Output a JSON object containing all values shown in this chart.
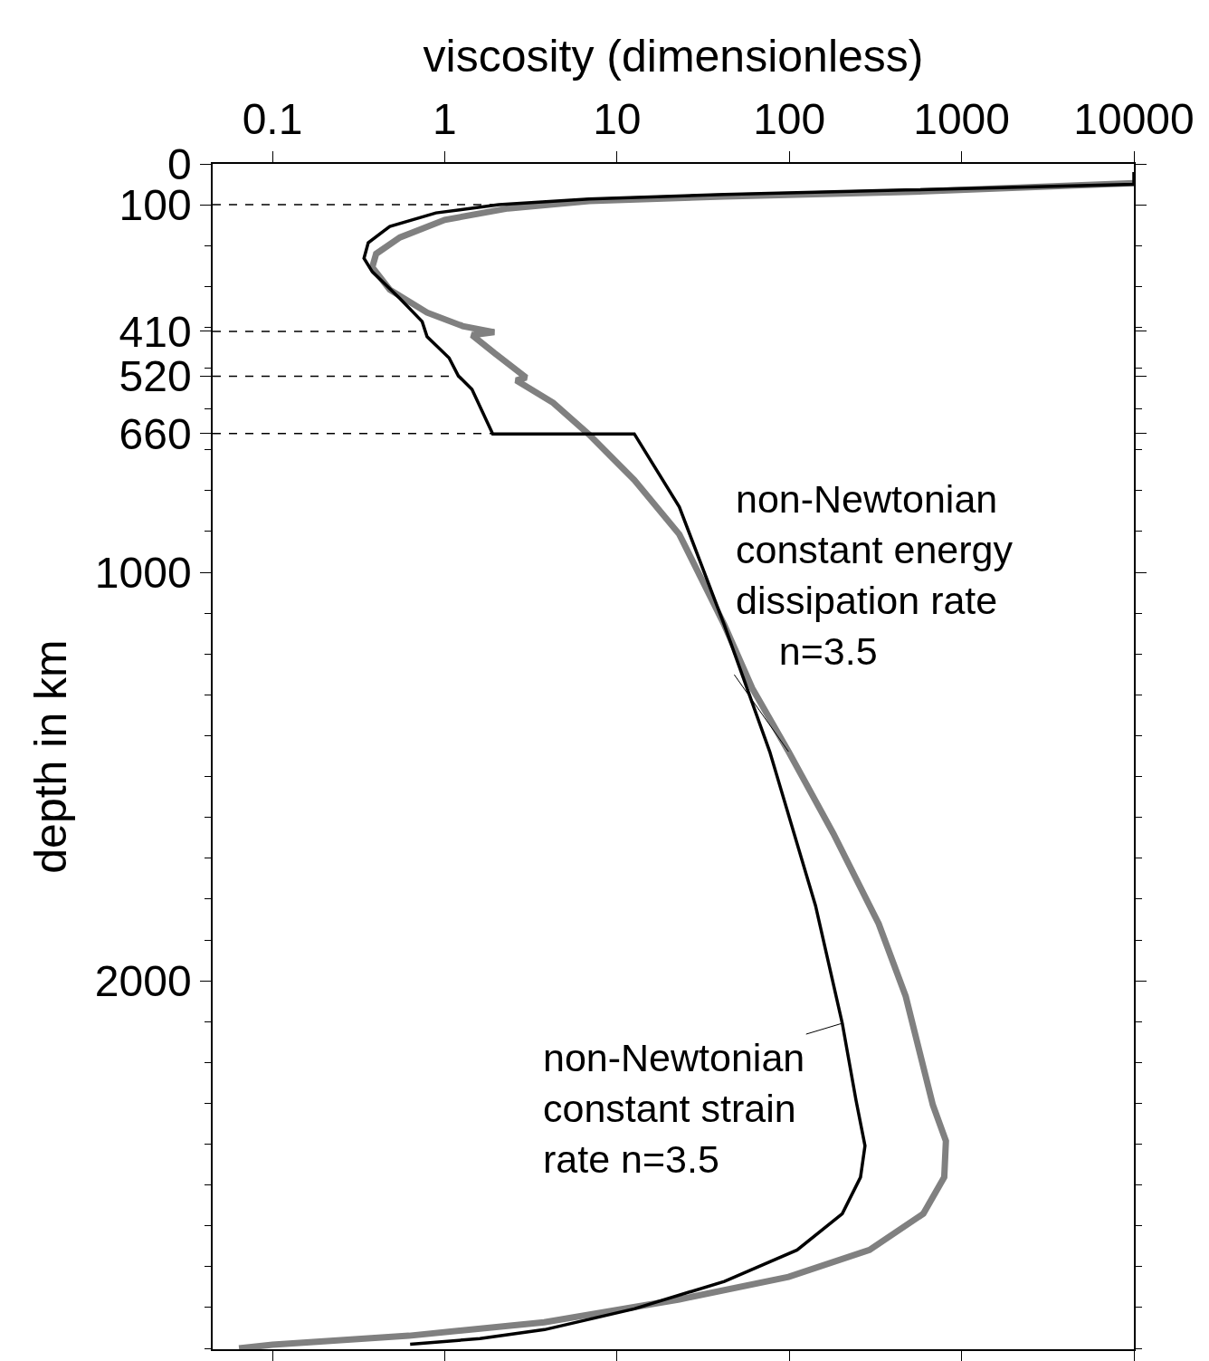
{
  "chart_data": {
    "type": "line",
    "xlabel": "viscosity (dimensionless)",
    "ylabel": "depth in km",
    "log": "x",
    "marker": "none",
    "xlim": [
      0.045,
      10000
    ],
    "xticks": [
      0.1,
      1,
      10,
      100,
      1000,
      10000
    ],
    "ylim": [
      2902,
      0
    ],
    "yticks": [
      0,
      100,
      410,
      520,
      660,
      1000,
      2000
    ],
    "series": [
      {
        "color": "#808080",
        "x": [
          10000,
          474,
          42,
          6.9,
          2.33,
          1.0,
          0.55,
          0.4,
          0.38,
          0.48,
          0.79,
          1.27,
          1.94,
          1.44,
          1.94,
          2.97,
          2.6,
          4.26,
          6.9,
          12.6,
          23,
          42,
          61,
          99,
          180,
          330,
          474,
          681,
          811,
          793,
          600,
          292,
          99,
          23,
          3.78,
          0.62,
          0.1,
          0.064
        ],
        "values": [
          47,
          69,
          80,
          91,
          109,
          137,
          180,
          220,
          253,
          308,
          364,
          397,
          412,
          419,
          463,
          523,
          530,
          585,
          663,
          774,
          907,
          1129,
          1284,
          1439,
          1639,
          1860,
          2038,
          2304,
          2392,
          2481,
          2570,
          2659,
          2725,
          2780,
          2836,
          2869,
          2891,
          2900
        ]
      },
      {
        "color": "#000000",
        "x": [
          10000,
          10000,
          474,
          42,
          6.9,
          2.06,
          0.89,
          0.48,
          0.36,
          0.34,
          0.38,
          0.55,
          0.74,
          0.79,
          1.06,
          1.2,
          1.44,
          1.9,
          12.6,
          23,
          42,
          77,
          142,
          203,
          244,
          275,
          259,
          203,
          111,
          42,
          12.6,
          3.8,
          1.6,
          0.63
        ],
        "values": [
          20,
          50,
          64,
          75,
          86,
          100,
          120,
          153,
          193,
          231,
          264,
          330,
          386,
          423,
          475,
          519,
          552,
          661,
          661,
          840,
          1129,
          1439,
          1816,
          2104,
          2293,
          2404,
          2481,
          2570,
          2659,
          2736,
          2803,
          2854,
          2876,
          2890
        ]
      }
    ],
    "ref_lines": [
      {
        "axis": "y",
        "value": 100,
        "line_style": "dashed",
        "color": "#000000"
      },
      {
        "axis": "y",
        "value": 410,
        "line_style": "dashed",
        "color": "#000000"
      },
      {
        "axis": "y",
        "value": 520,
        "line_style": "dashed",
        "color": "#000000"
      },
      {
        "axis": "y",
        "value": 660,
        "line_style": "dashed",
        "color": "#000000"
      }
    ],
    "annotations": [
      {
        "text": "non-Newtonian\nconstant energy\ndissipation rate\n    n=3.5",
        "x": 99,
        "y": 1439
      },
      {
        "text": "non-Newtonian\nconstant strain\nrate n=3.5",
        "x": 203,
        "y": 2104
      }
    ]
  }
}
